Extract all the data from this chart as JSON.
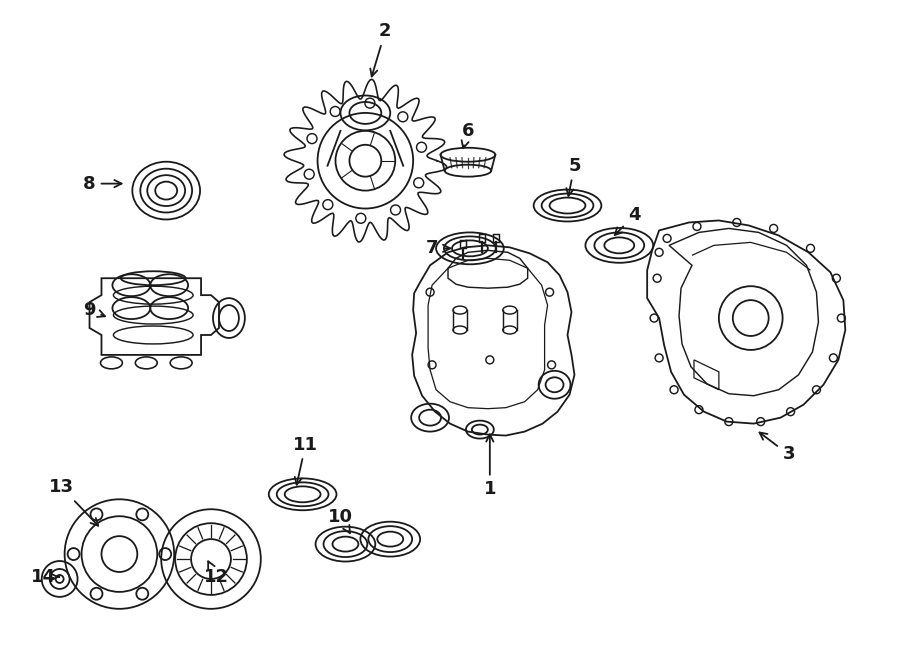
{
  "background_color": "#ffffff",
  "line_color": "#1a1a1a",
  "line_width": 1.3,
  "figsize": [
    9.0,
    6.62
  ],
  "dpi": 100,
  "labels_arrows": [
    [
      "1",
      490,
      490,
      490,
      430
    ],
    [
      "2",
      385,
      30,
      370,
      80
    ],
    [
      "3",
      790,
      455,
      757,
      430
    ],
    [
      "4",
      635,
      215,
      612,
      238
    ],
    [
      "5",
      575,
      165,
      568,
      200
    ],
    [
      "6",
      468,
      130,
      462,
      152
    ],
    [
      "7",
      432,
      248,
      455,
      248
    ],
    [
      "8",
      88,
      183,
      125,
      183
    ],
    [
      "9",
      88,
      310,
      108,
      318
    ],
    [
      "10",
      340,
      518,
      352,
      538
    ],
    [
      "11",
      305,
      445,
      295,
      490
    ],
    [
      "12",
      215,
      578,
      205,
      558
    ],
    [
      "13",
      60,
      488,
      100,
      530
    ],
    [
      "14",
      42,
      578,
      58,
      578
    ]
  ]
}
